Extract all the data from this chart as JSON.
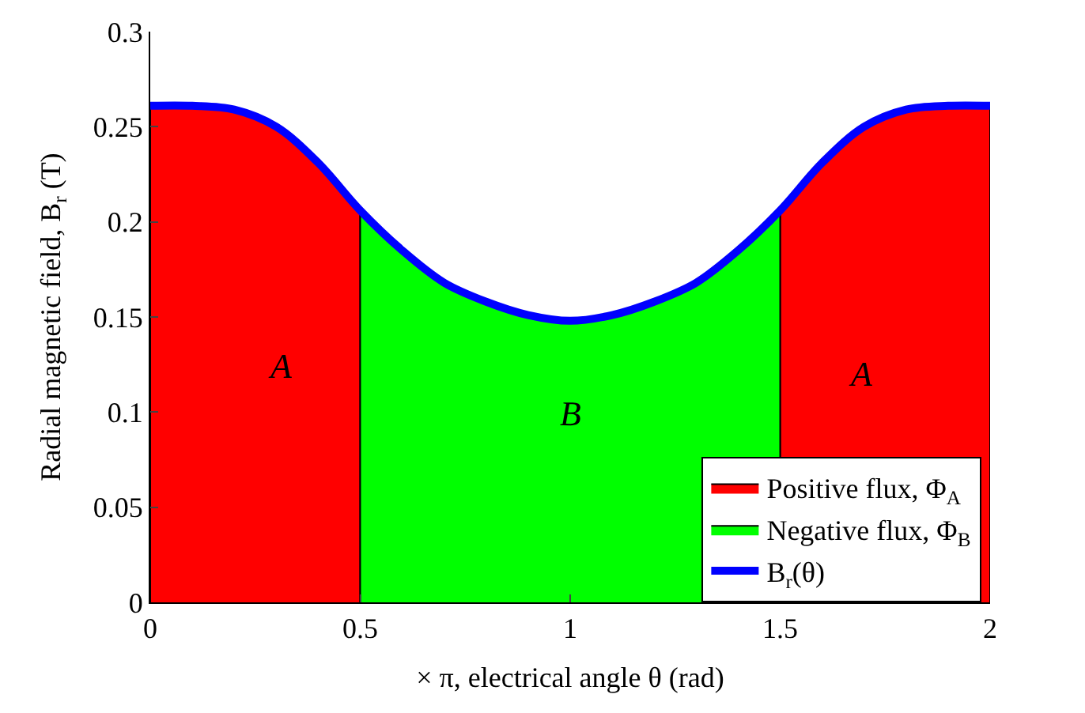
{
  "chart_data": {
    "type": "area",
    "xlabel": "× π, electrical angle θ (rad)",
    "ylabel": "Radial magnetic field, B$_{r}$ (T)",
    "x": [
      0,
      0.1,
      0.2,
      0.3,
      0.4,
      0.5,
      0.6,
      0.7,
      0.8,
      0.9,
      1.0,
      1.1,
      1.2,
      1.3,
      1.4,
      1.5,
      1.6,
      1.7,
      1.8,
      1.9,
      2.0
    ],
    "series": [
      {
        "name": "Positive flux, Φ$_{A}$",
        "color": "#ff0000",
        "values": [
          0.261,
          0.261,
          0.259,
          0.25,
          0.231,
          0.206,
          null,
          null,
          null,
          null,
          null,
          null,
          null,
          null,
          null,
          0.206,
          0.231,
          0.25,
          0.259,
          0.261,
          0.261
        ]
      },
      {
        "name": "Negative flux, Φ$_{B}$",
        "color": "#00ff00",
        "values": [
          null,
          null,
          null,
          null,
          null,
          0.206,
          0.185,
          0.168,
          0.158,
          0.151,
          0.148,
          0.151,
          0.158,
          0.168,
          0.185,
          0.206,
          null,
          null,
          null,
          null,
          null
        ]
      },
      {
        "name": "B$_{r}$(θ)",
        "type": "line",
        "color": "#0000ff",
        "values": [
          0.261,
          0.261,
          0.259,
          0.25,
          0.231,
          0.206,
          0.185,
          0.168,
          0.158,
          0.151,
          0.148,
          0.151,
          0.158,
          0.168,
          0.185,
          0.206,
          0.231,
          0.25,
          0.259,
          0.261,
          0.261
        ]
      }
    ],
    "annotations": [
      "A",
      "B",
      "A"
    ],
    "xlim": [
      0,
      2
    ],
    "xticks": [
      0,
      0.5,
      1,
      1.5,
      2
    ],
    "ylim": [
      0,
      0.3
    ],
    "yticks": [
      0,
      0.05,
      0.1,
      0.15,
      0.2,
      0.25,
      0.3
    ],
    "legend": "bottom right"
  }
}
